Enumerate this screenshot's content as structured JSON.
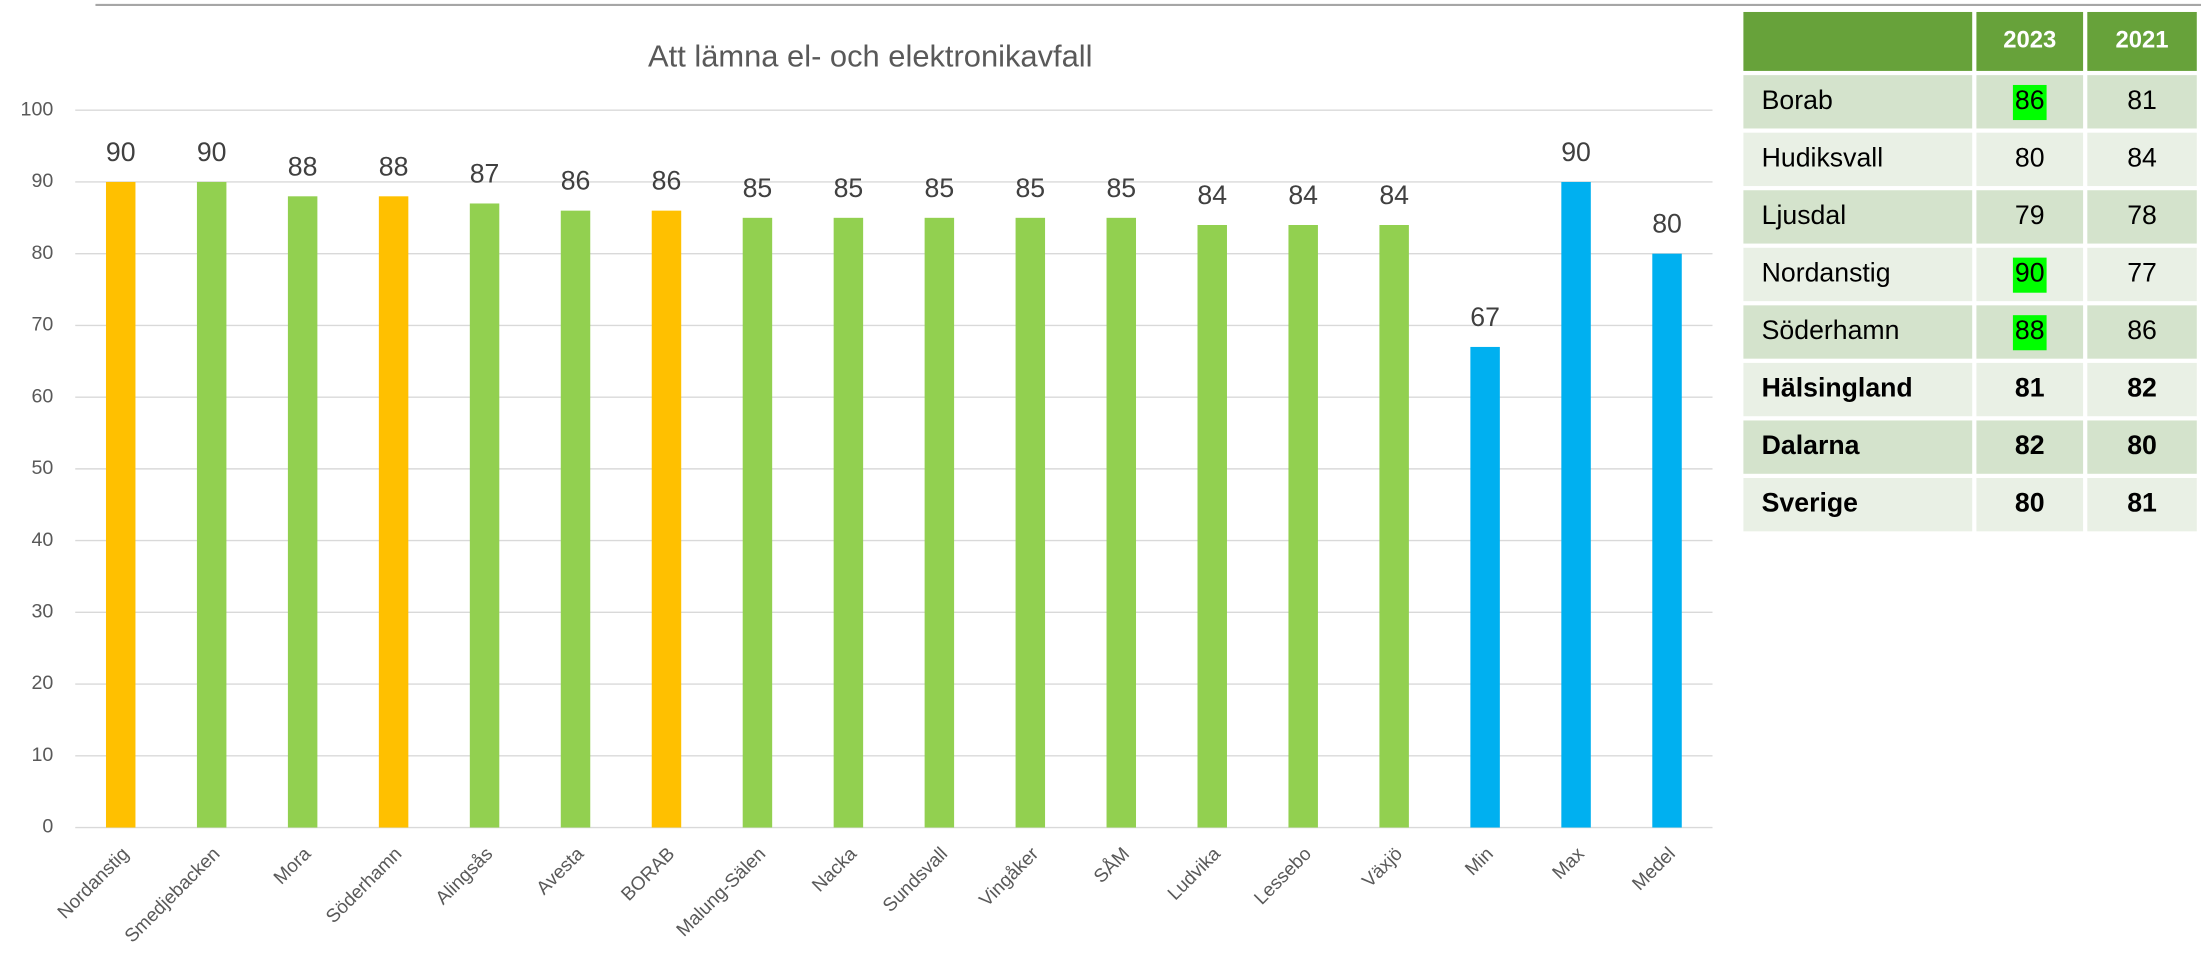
{
  "chart_data": {
    "type": "bar",
    "title": "Att lämna el- och elektronikavfall",
    "categories": [
      "Nordanstig",
      "Smedjebacken",
      "Mora",
      "Söderhamn",
      "Alingsås",
      "Avesta",
      "BORAB",
      "Malung-Sälen",
      "Nacka",
      "Sundsvall",
      "Vingåker",
      "SÅM",
      "Ludvika",
      "Lessebo",
      "Växjö",
      "Min",
      "Max",
      "Medel"
    ],
    "values": [
      90,
      90,
      88,
      88,
      87,
      86,
      86,
      85,
      85,
      85,
      85,
      85,
      84,
      84,
      84,
      67,
      90,
      80
    ],
    "colors": [
      "#ffc000",
      "#92d050",
      "#92d050",
      "#ffc000",
      "#92d050",
      "#92d050",
      "#ffc000",
      "#92d050",
      "#92d050",
      "#92d050",
      "#92d050",
      "#92d050",
      "#92d050",
      "#92d050",
      "#92d050",
      "#00b0f0",
      "#00b0f0",
      "#00b0f0"
    ],
    "ylim": [
      0,
      100
    ],
    "yticks": [
      0,
      10,
      20,
      30,
      40,
      50,
      60,
      70,
      80,
      90,
      100
    ],
    "grid": true
  },
  "table": {
    "columns": [
      "2023",
      "2021"
    ],
    "rows": [
      {
        "label": "Borab",
        "values": [
          86,
          81
        ],
        "highlight": [
          true,
          false
        ],
        "bold": false
      },
      {
        "label": "Hudiksvall",
        "values": [
          80,
          84
        ],
        "highlight": [
          false,
          false
        ],
        "bold": false
      },
      {
        "label": "Ljusdal",
        "values": [
          79,
          78
        ],
        "highlight": [
          false,
          false
        ],
        "bold": false
      },
      {
        "label": "Nordanstig",
        "values": [
          90,
          77
        ],
        "highlight": [
          true,
          false
        ],
        "bold": false
      },
      {
        "label": "Söderhamn",
        "values": [
          88,
          86
        ],
        "highlight": [
          true,
          false
        ],
        "bold": false
      },
      {
        "label": "Hälsingland",
        "values": [
          81,
          82
        ],
        "highlight": [
          false,
          false
        ],
        "bold": true
      },
      {
        "label": "Dalarna",
        "values": [
          82,
          80
        ],
        "highlight": [
          false,
          false
        ],
        "bold": true
      },
      {
        "label": "Sverige",
        "values": [
          80,
          81
        ],
        "highlight": [
          false,
          false
        ],
        "bold": true
      }
    ]
  }
}
